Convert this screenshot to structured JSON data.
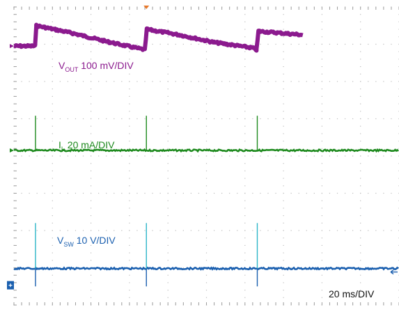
{
  "chart_data": {
    "type": "line",
    "grid": true,
    "timebase": "20 ms/DIV",
    "divisions": {
      "x": 10,
      "y": 8
    },
    "xlim": [
      0,
      10
    ],
    "ylim": [
      0,
      8
    ],
    "series": [
      {
        "name": "VOUT",
        "label_main": "V",
        "label_sub": "OUT",
        "label_rest": " 100 mV/DIV",
        "color": "#8B1A8E",
        "points": [
          [
            0,
            6.95
          ],
          [
            0.55,
            6.95
          ],
          [
            0.58,
            7.5
          ],
          [
            1.5,
            7.3
          ],
          [
            2.5,
            7.05
          ],
          [
            3.4,
            6.85
          ],
          [
            3.45,
            7.4
          ],
          [
            4.3,
            7.25
          ],
          [
            5.2,
            7.05
          ],
          [
            6.2,
            6.9
          ],
          [
            6.3,
            6.85
          ],
          [
            6.35,
            7.35
          ],
          [
            7.5,
            7.25
          ]
        ]
      },
      {
        "name": "IL",
        "label_main": "I",
        "label_sub": "L",
        "label_rest": " 20 mA/DIV",
        "color": "#1E8A1E",
        "baseline": 4.15,
        "spikes": [
          [
            0.56,
            5.08
          ],
          [
            3.44,
            5.08
          ],
          [
            6.32,
            5.08
          ]
        ]
      },
      {
        "name": "VSW",
        "label_main": "V",
        "label_sub": "SW",
        "label_rest": " 10 V/DIV",
        "color": "#1A5FAF",
        "spike_color": "#2BB5C8",
        "baseline": 0.98,
        "spikes": [
          [
            0.56,
            2.2
          ],
          [
            3.44,
            2.2
          ],
          [
            6.32,
            2.2
          ]
        ],
        "dips": [
          [
            0.56,
            0.5
          ],
          [
            3.44,
            0.5
          ],
          [
            6.32,
            0.5
          ]
        ]
      }
    ]
  },
  "colors": {
    "grid_dot": "#bcbcbc",
    "tick": "#9a9a9a",
    "text_dark": "#111111",
    "marker_orange": "#e8782a",
    "marker_blue": "#1A5FAF"
  }
}
